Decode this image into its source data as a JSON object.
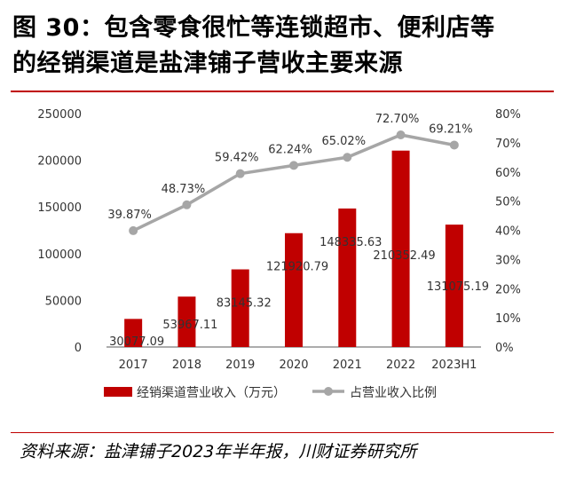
{
  "header": {
    "title_line1": "图 30：包含零食很忙等连锁超市、便利店等",
    "title_line2": "的经销渠道是盐津铺子营收主要来源"
  },
  "footer": {
    "source": "资料来源：盐津铺子2023年半年报，川财证券研究所"
  },
  "colors": {
    "bar": "#c00000",
    "line": "#a6a6a6",
    "rule": "#c00000"
  },
  "chart_data": {
    "type": "bar",
    "categories": [
      "2017",
      "2018",
      "2019",
      "2020",
      "2021",
      "2022",
      "2023H1"
    ],
    "series": [
      {
        "name": "经销渠道营业收入（万元）",
        "type": "bar",
        "axis": "left",
        "values": [
          30077.09,
          53967.11,
          83145.32,
          121920.79,
          148335.63,
          210352.49,
          131075.19
        ],
        "labels": [
          "30077.09",
          "53967.11",
          "83145.32",
          "121920.79",
          "148335.63",
          "210352.49",
          "131075.19"
        ]
      },
      {
        "name": "占营业收入比例",
        "type": "line",
        "axis": "right",
        "values": [
          39.87,
          48.73,
          59.42,
          62.24,
          65.02,
          72.7,
          69.21
        ],
        "labels": [
          "39.87%",
          "48.73%",
          "59.42%",
          "62.24%",
          "65.02%",
          "72.70%",
          "69.21%"
        ]
      }
    ],
    "left_axis": {
      "ylim": [
        0,
        250000
      ],
      "ticks": [
        "0",
        "50000",
        "100000",
        "150000",
        "200000",
        "250000"
      ]
    },
    "right_axis": {
      "ylim": [
        0,
        80
      ],
      "ticks": [
        "0%",
        "10%",
        "20%",
        "30%",
        "40%",
        "50%",
        "60%",
        "70%",
        "80%"
      ]
    },
    "legend_position": "bottom",
    "grid": false
  }
}
